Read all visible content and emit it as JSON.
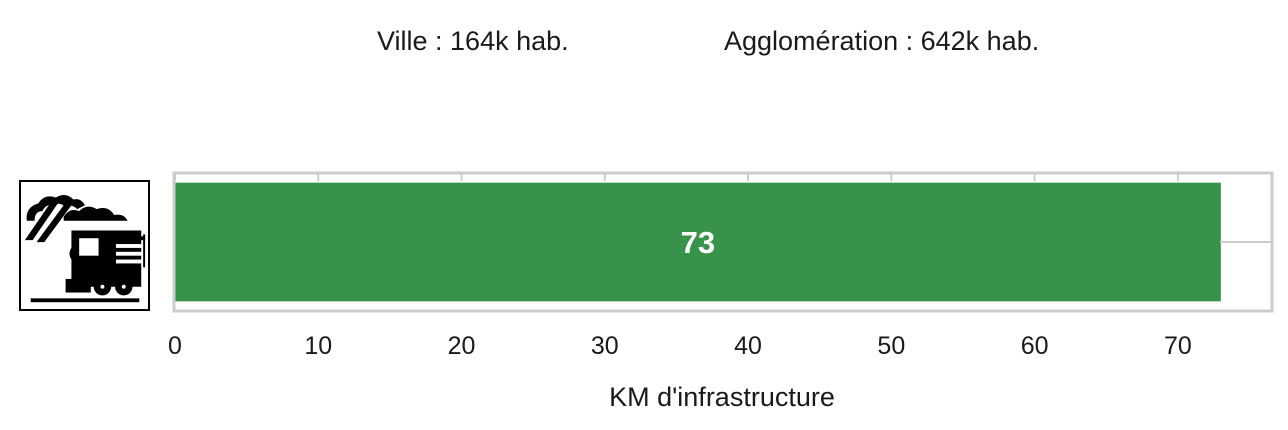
{
  "header": {
    "city_population": "Ville : 164k hab.",
    "agglomeration_population": "Agglomération : 642k hab."
  },
  "icon": {
    "name": "train-icon"
  },
  "colors": {
    "bar": "#38934a",
    "axes": "#cccccc"
  },
  "chart_data": {
    "type": "bar",
    "orientation": "horizontal",
    "categories": [
      ""
    ],
    "values": [
      73
    ],
    "data_labels": [
      "73"
    ],
    "title": "",
    "xlabel": "KM d'infrastructure",
    "ylabel": "",
    "xlim": [
      0,
      76.5
    ],
    "xticks": [
      0,
      10,
      20,
      30,
      40,
      50,
      60,
      70
    ],
    "grid": false
  }
}
